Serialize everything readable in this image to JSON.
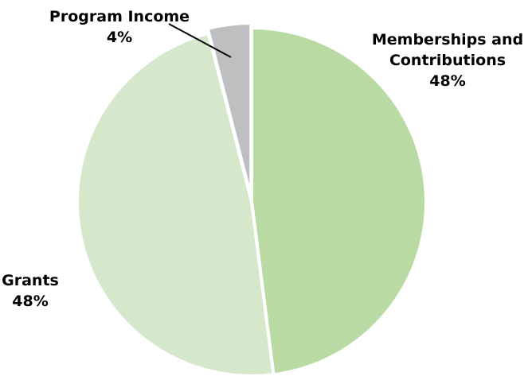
{
  "chart_data": {
    "type": "pie",
    "slices": [
      {
        "name": "Memberships and Contributions",
        "label_lines": [
          "Memberships and",
          "Contributions"
        ],
        "value": 48,
        "value_label": "48%",
        "color": "#b9dba3"
      },
      {
        "name": "Grants",
        "label_lines": [
          "Grants"
        ],
        "value": 48,
        "value_label": "48%",
        "color": "#d6e8cb"
      },
      {
        "name": "Program Income",
        "label_lines": [
          "Program Income"
        ],
        "value": 4,
        "value_label": "4%",
        "color": "#bebfc1"
      }
    ],
    "start": "12 o'clock",
    "direction": "clockwise",
    "legend": "none",
    "slice_separator_color": "#ffffff"
  }
}
